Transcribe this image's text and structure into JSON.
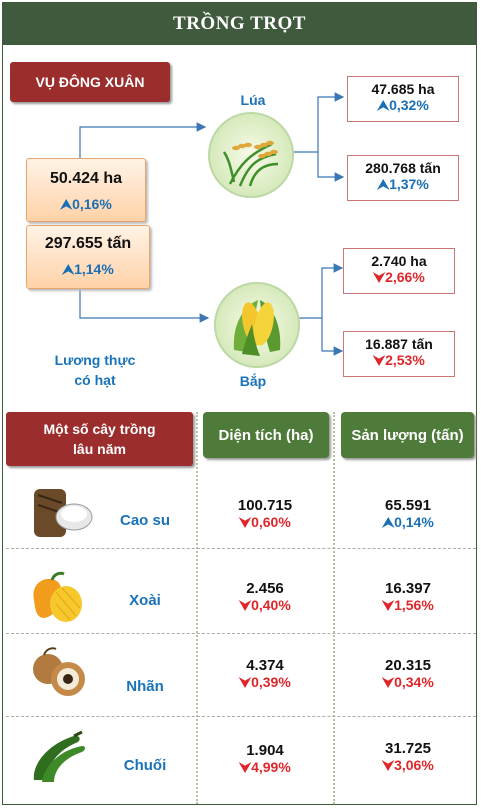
{
  "header": {
    "title": "TRỒNG TRỌT"
  },
  "season": {
    "label": "VỤ ĐÔNG XUÂN"
  },
  "total": {
    "area": "50.424 ha",
    "area_change": "0,16%",
    "output": "297.655 tấn",
    "output_change": "1,14%",
    "label_line1": "Lương thực",
    "label_line2": "có hạt"
  },
  "rice": {
    "label": "Lúa",
    "area": "47.685 ha",
    "area_change": "0,32%",
    "output": "280.768 tấn",
    "output_change": "1,37%"
  },
  "corn": {
    "label": "Bắp",
    "area": "2.740 ha",
    "area_change": "2,66%",
    "output": "16.887 tấn",
    "output_change": "2,53%"
  },
  "perennial": {
    "title_line1": "Một số cây trồng",
    "title_line2": "lâu năm",
    "col_area": "Diện tích (ha)",
    "col_output": "Sản lượng (tấn)",
    "rows": [
      {
        "name": "Cao su",
        "icon": "rubber-tree-icon",
        "area": "100.715",
        "area_change": "0,60%",
        "area_dir": "down",
        "output": "65.591",
        "output_change": "0,14%",
        "output_dir": "up"
      },
      {
        "name": "Xoài",
        "icon": "mango-icon",
        "area": "2.456",
        "area_change": "0,40%",
        "area_dir": "down",
        "output": "16.397",
        "output_change": "1,56%",
        "output_dir": "down"
      },
      {
        "name": "Nhãn",
        "icon": "longan-icon",
        "area": "4.374",
        "area_change": "0,39%",
        "area_dir": "down",
        "output": "20.315",
        "output_change": "0,34%",
        "output_dir": "down"
      },
      {
        "name": "Chuối",
        "icon": "banana-icon",
        "area": "1.904",
        "area_change": "4,99%",
        "area_dir": "down",
        "output": "31.725",
        "output_change": "3,06%",
        "output_dir": "down"
      }
    ]
  },
  "colors": {
    "header": "#3f5a3d",
    "red_box": "#9b2d2d",
    "green_head": "#4e7a3a",
    "up": "#1a6fb5",
    "down": "#e0262a"
  }
}
